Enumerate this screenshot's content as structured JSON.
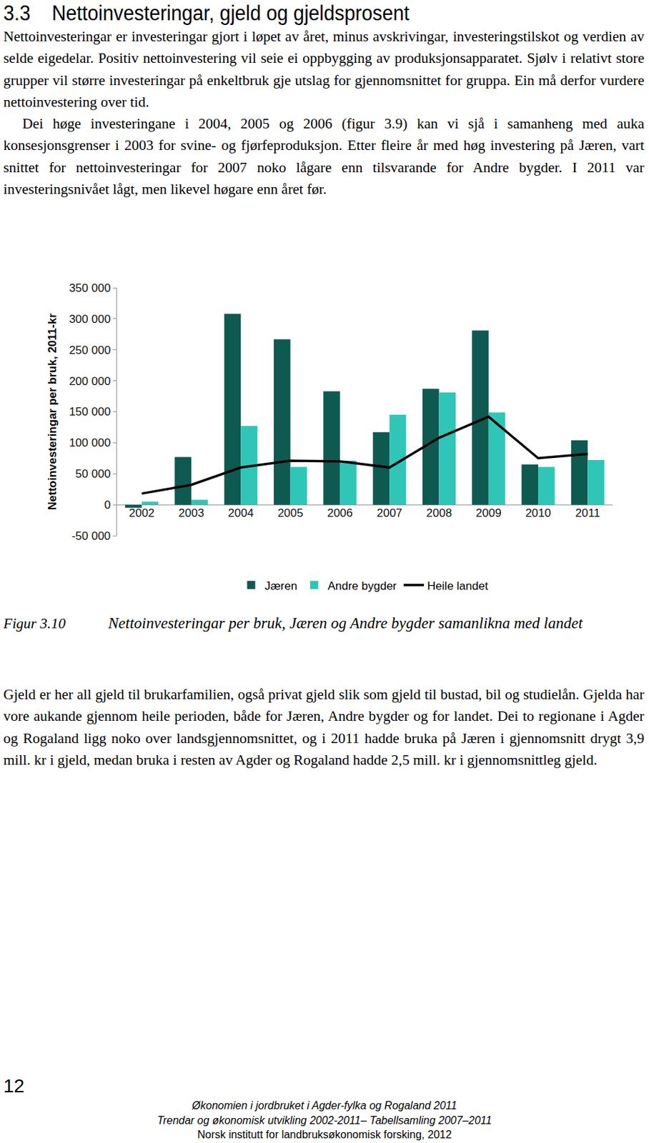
{
  "heading": {
    "number": "3.3",
    "title": "Nettoinvesteringar, gjeld og gjeldsprosent"
  },
  "paragraphs_before": [
    "Nettoinvesteringar er investeringar gjort i løpet av året, minus avskrivingar, investeringstilskot og verdien av selde eigedelar. Positiv nettoinvestering vil seie ei oppbygging av produksjonsapparatet. Sjølv i relativt store grupper vil større investeringar på enkeltbruk gje utslag for gjennomsnittet for gruppa. Ein må derfor vurdere nettoinvestering over tid.",
    "Dei høge investeringane i 2004, 2005 og 2006 (figur 3.9) kan vi sjå i samanheng med auka konsesjonsgrenser i 2003 for svine- og fjørfeproduksjon. Etter fleire år med høg investering på Jæren, vart snittet for nettoinvesteringar for 2007 noko lågare enn tilsvarande for Andre bygder. I 2011 var investeringsnivået lågt, men likevel høgare enn året før."
  ],
  "chart_data": {
    "type": "bar",
    "y_label": "Nettoinvesteringar per bruk, 2011-kr",
    "categories": [
      "2002",
      "2003",
      "2004",
      "2005",
      "2006",
      "2007",
      "2008",
      "2009",
      "2010",
      "2011"
    ],
    "series": [
      {
        "name": "Jæren",
        "type": "bar",
        "color": "#0e5a50",
        "values": [
          -5000,
          77000,
          308000,
          267000,
          183000,
          117000,
          187000,
          281000,
          65000,
          104000
        ]
      },
      {
        "name": "Andre bygder",
        "type": "bar",
        "color": "#2fc6b8",
        "values": [
          5000,
          8000,
          127000,
          61000,
          71000,
          145000,
          181000,
          149000,
          61000,
          72000
        ]
      },
      {
        "name": "Heile landet",
        "type": "line",
        "color": "#000000",
        "line_style": "solid",
        "values": [
          18000,
          32000,
          60000,
          71000,
          70000,
          60000,
          108000,
          142000,
          75000,
          82000
        ]
      }
    ],
    "ylim": [
      -50000,
      350000
    ],
    "yticks": [
      {
        "value": -50000,
        "label": "-50 000"
      },
      0,
      {
        "value": 50000,
        "label": "50 000"
      },
      {
        "value": 100000,
        "label": "100 000"
      },
      {
        "value": 150000,
        "label": "150 000"
      },
      {
        "value": 200000,
        "label": "200 000"
      },
      {
        "value": 250000,
        "label": "250 000"
      },
      {
        "value": 300000,
        "label": "300 000"
      },
      {
        "value": 350000,
        "label": "350 000"
      }
    ],
    "grid": false,
    "legend": "bottom"
  },
  "caption": {
    "label": "Figur 3.10",
    "text": "Nettoinvesteringar per bruk, Jæren og Andre bygder samanlikna med landet"
  },
  "paragraphs_after": [
    "Gjeld er her all gjeld til brukarfamilien, også privat gjeld slik som gjeld til bustad, bil og studielån. Gjelda har vore aukande gjennom heile perioden, både for Jæren, Andre bygder og for landet. Dei to regionane i Agder og Rogaland ligg noko over landsgjennomsnittet, og i 2011 hadde bruka på Jæren i gjennomsnitt drygt 3,9 mill. kr i gjeld, medan bruka i resten av Agder og Rogaland hadde 2,5 mill. kr i gjennomsnittleg gjeld."
  ],
  "page_number": "12",
  "footer": [
    "Økonomien i jordbruket i Agder-fylka og Rogaland 2011",
    "Trendar og økonomisk utvikling 2002-2011– Tabellsamling 2007–2011",
    "Norsk institutt for landbruksøkonomisk forsking, 2012"
  ]
}
